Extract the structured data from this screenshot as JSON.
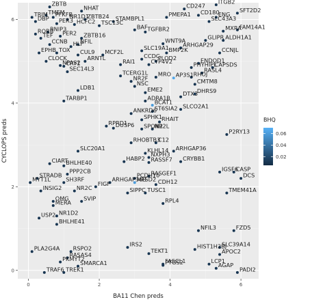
{
  "chart_data": {
    "type": "scatter",
    "xlabel": "BA11 Chen preds",
    "ylabel": "CYCLOPS preds",
    "xlim": [
      -0.3,
      6.5
    ],
    "ylim": [
      -0.2,
      6.4
    ],
    "x_ticks": [
      0,
      2,
      4,
      6
    ],
    "y_ticks": [
      0,
      2,
      4,
      6
    ],
    "grid": true,
    "background": "#ebebeb",
    "point_color_low": "#132b43",
    "point_color_high": "#56b1f7",
    "legend": {
      "title": "BHQ",
      "position": "right",
      "ticks": [
        0.02,
        0.04,
        0.06
      ],
      "range": [
        0.005,
        0.07
      ]
    },
    "points": [
      {
        "label": "ZBTB",
        "x": 0.6,
        "y": 6.3,
        "bhq": 0.01
      },
      {
        "label": "NHAT",
        "x": 1.5,
        "y": 6.2,
        "bhq": 0.01
      },
      {
        "label": "TMEM",
        "x": 0.5,
        "y": 6.1,
        "bhq": 0.01
      },
      {
        "label": "TRIM",
        "x": 0.1,
        "y": 6.05,
        "bhq": 0.01
      },
      {
        "label": "PFKFB",
        "x": 0.7,
        "y": 6.05,
        "bhq": 0.01
      },
      {
        "label": "NR1D1",
        "x": 1.1,
        "y": 6.0,
        "bhq": 0.01
      },
      {
        "label": "ZBTB24",
        "x": 1.6,
        "y": 6.0,
        "bhq": 0.01
      },
      {
        "label": "DBP",
        "x": 0.2,
        "y": 5.95,
        "bhq": 0.01
      },
      {
        "label": "PER3",
        "x": 0.8,
        "y": 5.9,
        "bhq": 0.01
      },
      {
        "label": "HCFC2",
        "x": 1.3,
        "y": 5.88,
        "bhq": 0.01
      },
      {
        "label": "TSC13C",
        "x": 2.0,
        "y": 5.85,
        "bhq": 0.01
      },
      {
        "label": "STAMBPL1",
        "x": 2.4,
        "y": 5.95,
        "bhq": 0.01
      },
      {
        "label": "BNIP3",
        "x": 0.55,
        "y": 5.7,
        "bhq": 0.01
      },
      {
        "label": "RORB",
        "x": 0.2,
        "y": 5.65,
        "bhq": 0.01
      },
      {
        "label": "TEF",
        "x": 0.35,
        "y": 5.55,
        "bhq": 0.01
      },
      {
        "label": "PER2",
        "x": 0.9,
        "y": 5.6,
        "bhq": 0.01
      },
      {
        "label": "ZBTB16",
        "x": 1.5,
        "y": 5.55,
        "bhq": 0.01
      },
      {
        "label": "BAF",
        "x": 3.0,
        "y": 5.75,
        "bhq": 0.01
      },
      {
        "label": "CCNB",
        "x": 0.6,
        "y": 5.4,
        "bhq": 0.01
      },
      {
        "label": "HLF",
        "x": 1.2,
        "y": 5.35,
        "bhq": 0.01
      },
      {
        "label": "NFIL",
        "x": 1.4,
        "y": 5.4,
        "bhq": 0.01
      },
      {
        "label": "EPHB",
        "x": 0.3,
        "y": 5.2,
        "bhq": 0.01
      },
      {
        "label": "TOX",
        "x": 0.8,
        "y": 5.2,
        "bhq": 0.01
      },
      {
        "label": "CUL9",
        "x": 1.4,
        "y": 5.15,
        "bhq": 0.01
      },
      {
        "label": "MCF2L",
        "x": 2.1,
        "y": 5.15,
        "bhq": 0.01
      },
      {
        "label": "CLOCK",
        "x": 0.5,
        "y": 5.0,
        "bhq": 0.01
      },
      {
        "label": "ARNTL",
        "x": 1.6,
        "y": 5.0,
        "bhq": 0.01
      },
      {
        "label": "NPAS2",
        "x": 0.9,
        "y": 4.9,
        "bhq": 0.01
      },
      {
        "label": "CRY1",
        "x": 1.0,
        "y": 4.88,
        "bhq": 0.01
      },
      {
        "label": "SEC14L3",
        "x": 1.1,
        "y": 4.75,
        "bhq": 0.01
      },
      {
        "label": "CD247",
        "x": 4.4,
        "y": 6.25,
        "bhq": 0.01
      },
      {
        "label": "ITGB2",
        "x": 5.3,
        "y": 6.35,
        "bhq": 0.01
      },
      {
        "label": "SFT2D2",
        "x": 5.9,
        "y": 6.15,
        "bhq": 0.01
      },
      {
        "label": "PMEPA1",
        "x": 3.9,
        "y": 6.05,
        "bhq": 0.01
      },
      {
        "label": "CD180",
        "x": 4.8,
        "y": 6.1,
        "bhq": 0.01
      },
      {
        "label": "ENG",
        "x": 5.3,
        "y": 6.05,
        "bhq": 0.01
      },
      {
        "label": "SLC43A3",
        "x": 5.1,
        "y": 5.95,
        "bhq": 0.01
      },
      {
        "label": "TGFBR2",
        "x": 3.3,
        "y": 5.7,
        "bhq": 0.01
      },
      {
        "label": "MXRA",
        "x": 5.5,
        "y": 5.72,
        "bhq": 0.01
      },
      {
        "label": "FAM14A1",
        "x": 5.9,
        "y": 5.75,
        "bhq": 0.01
      },
      {
        "label": "WNT9A",
        "x": 3.8,
        "y": 5.42,
        "bhq": 0.01
      },
      {
        "label": "ARHGAP29",
        "x": 4.3,
        "y": 5.32,
        "bhq": 0.01
      },
      {
        "label": "GLIPR",
        "x": 5.0,
        "y": 5.5,
        "bhq": 0.01
      },
      {
        "label": "ALDH1A1",
        "x": 5.5,
        "y": 5.5,
        "bhq": 0.01
      },
      {
        "label": "SLC19A1",
        "x": 3.2,
        "y": 5.25,
        "bhq": 0.01
      },
      {
        "label": "BMP2K",
        "x": 3.9,
        "y": 5.2,
        "bhq": 0.01
      },
      {
        "label": "CCNJL",
        "x": 5.4,
        "y": 5.2,
        "bhq": 0.01
      },
      {
        "label": "CCDC",
        "x": 3.2,
        "y": 5.05,
        "bhq": 0.01
      },
      {
        "label": "PLOD2",
        "x": 3.6,
        "y": 5.0,
        "bhq": 0.01
      },
      {
        "label": "ENDOD1",
        "x": 4.8,
        "y": 4.95,
        "bhq": 0.01
      },
      {
        "label": "PHYHIPL",
        "x": 4.6,
        "y": 4.85,
        "bhq": 0.01
      },
      {
        "label": "CAPSDS",
        "x": 5.2,
        "y": 4.85,
        "bhq": 0.01
      },
      {
        "label": "RAI1",
        "x": 2.6,
        "y": 4.92,
        "bhq": 0.01
      },
      {
        "label": "CYP4V2",
        "x": 3.4,
        "y": 4.92,
        "bhq": 0.01
      },
      {
        "label": "TCERG1L",
        "x": 2.6,
        "y": 4.65,
        "bhq": 0.01
      },
      {
        "label": "MRO",
        "x": 3.6,
        "y": 4.62,
        "bhq": 0.01
      },
      {
        "label": "AP3S1",
        "x": 4.1,
        "y": 4.6,
        "bhq": 0.065
      },
      {
        "label": "RASL4",
        "x": 4.9,
        "y": 4.72,
        "bhq": 0.01
      },
      {
        "label": "NR2F",
        "x": 2.9,
        "y": 4.52,
        "bhq": 0.01
      },
      {
        "label": "NSC",
        "x": 3.0,
        "y": 4.4,
        "bhq": 0.01
      },
      {
        "label": "CMTM8",
        "x": 4.7,
        "y": 4.45,
        "bhq": 0.01
      },
      {
        "label": "RHOJ",
        "x": 4.6,
        "y": 4.62,
        "bhq": 0.01
      },
      {
        "label": "LDB1",
        "x": 1.4,
        "y": 4.3,
        "bhq": 0.01
      },
      {
        "label": "TARBP1",
        "x": 1.0,
        "y": 4.05,
        "bhq": 0.01
      },
      {
        "label": "EME2",
        "x": 3.3,
        "y": 4.25,
        "bhq": 0.01
      },
      {
        "label": "DTX3",
        "x": 4.3,
        "y": 4.15,
        "bhq": 0.01
      },
      {
        "label": "DHRS9",
        "x": 4.7,
        "y": 4.22,
        "bhq": 0.01
      },
      {
        "label": "ADRA1B",
        "x": 3.3,
        "y": 4.05,
        "bhq": 0.01
      },
      {
        "label": "BCAT1",
        "x": 3.5,
        "y": 3.95,
        "bhq": 0.06
      },
      {
        "label": "ST6SIA2",
        "x": 3.5,
        "y": 3.8,
        "bhq": 0.01
      },
      {
        "label": "SLCO2A1",
        "x": 4.3,
        "y": 3.85,
        "bhq": 0.01
      },
      {
        "label": "ANKRD6",
        "x": 2.9,
        "y": 3.75,
        "bhq": 0.01
      },
      {
        "label": "SPHK1",
        "x": 3.2,
        "y": 3.6,
        "bhq": 0.01
      },
      {
        "label": "RHAIT",
        "x": 3.7,
        "y": 3.55,
        "bhq": 0.01
      },
      {
        "label": "RPRD1",
        "x": 2.2,
        "y": 3.45,
        "bhq": 0.01
      },
      {
        "label": "DUSP6",
        "x": 2.4,
        "y": 3.4,
        "bhq": 0.01
      },
      {
        "label": "SPON2",
        "x": 3.2,
        "y": 3.38,
        "bhq": 0.01
      },
      {
        "label": "NR2L",
        "x": 3.5,
        "y": 3.38,
        "bhq": 0.01
      },
      {
        "label": "P2RY13",
        "x": 5.6,
        "y": 3.25,
        "bhq": 0.01
      },
      {
        "label": "RHOBTB3",
        "x": 2.9,
        "y": 3.05,
        "bhq": 0.01
      },
      {
        "label": "C12",
        "x": 3.6,
        "y": 3.05,
        "bhq": 0.01
      },
      {
        "label": "SLC20A1",
        "x": 1.4,
        "y": 2.85,
        "bhq": 0.01
      },
      {
        "label": "KLHL14",
        "x": 3.3,
        "y": 2.8,
        "bhq": 0.01
      },
      {
        "label": "ARHGAP36",
        "x": 4.1,
        "y": 2.85,
        "bhq": 0.01
      },
      {
        "label": "NXPH3",
        "x": 3.4,
        "y": 2.7,
        "bhq": 0.01
      },
      {
        "label": "CIART",
        "x": 0.6,
        "y": 2.55,
        "bhq": 0.01
      },
      {
        "label": "BHLHE40",
        "x": 1.0,
        "y": 2.5,
        "bhq": 0.01
      },
      {
        "label": "HABP2",
        "x": 2.7,
        "y": 2.6,
        "bhq": 0.01
      },
      {
        "label": "RASSF7",
        "x": 3.4,
        "y": 2.58,
        "bhq": 0.01
      },
      {
        "label": "CRYBB1",
        "x": 4.3,
        "y": 2.6,
        "bhq": 0.01
      },
      {
        "label": "IGSF6",
        "x": 5.4,
        "y": 2.35,
        "bhq": 0.01
      },
      {
        "label": "CASP",
        "x": 5.8,
        "y": 2.35,
        "bhq": 0.01
      },
      {
        "label": "PPP2CB",
        "x": 1.1,
        "y": 2.3,
        "bhq": 0.01
      },
      {
        "label": "STRADB",
        "x": 0.25,
        "y": 2.2,
        "bhq": 0.01
      },
      {
        "label": "PCDH10",
        "x": 3.0,
        "y": 2.2,
        "bhq": 0.01
      },
      {
        "label": "RASGEF1",
        "x": 3.4,
        "y": 2.25,
        "bhq": 0.01
      },
      {
        "label": "DCS",
        "x": 6.0,
        "y": 2.2,
        "bhq": 0.01
      },
      {
        "label": "MYT1L",
        "x": 0.05,
        "y": 2.1,
        "bhq": 0.01
      },
      {
        "label": "SH3RF",
        "x": 1.0,
        "y": 2.1,
        "bhq": 0.01
      },
      {
        "label": "ARHGAP36B",
        "x": 2.3,
        "y": 2.1,
        "bhq": 0.01
      },
      {
        "label": "MFSD2",
        "x": 3.0,
        "y": 2.1,
        "bhq": 0.06
      },
      {
        "label": "CDH12",
        "x": 3.6,
        "y": 2.05,
        "bhq": 0.01
      },
      {
        "label": "FIGF",
        "x": 1.9,
        "y": 2.0,
        "bhq": 0.01
      },
      {
        "label": "INSIG2",
        "x": 0.35,
        "y": 1.9,
        "bhq": 0.01
      },
      {
        "label": "NR2C",
        "x": 1.3,
        "y": 1.9,
        "bhq": 0.01
      },
      {
        "label": "TMEM41A",
        "x": 5.6,
        "y": 1.85,
        "bhq": 0.01
      },
      {
        "label": "SIPPC",
        "x": 2.8,
        "y": 1.85,
        "bhq": 0.01
      },
      {
        "label": "TUSC1",
        "x": 3.3,
        "y": 1.85,
        "bhq": 0.01
      },
      {
        "label": "OMG",
        "x": 0.7,
        "y": 1.65,
        "bhq": 0.01
      },
      {
        "label": "SVIP",
        "x": 1.5,
        "y": 1.65,
        "bhq": 0.01
      },
      {
        "label": "RPL4",
        "x": 3.8,
        "y": 1.6,
        "bhq": 0.01
      },
      {
        "label": "MERA",
        "x": 0.7,
        "y": 1.55,
        "bhq": 0.01
      },
      {
        "label": "NR1D2",
        "x": 0.8,
        "y": 1.3,
        "bhq": 0.01
      },
      {
        "label": "USP2",
        "x": 0.3,
        "y": 1.25,
        "bhq": 0.01
      },
      {
        "label": "BHLHE41",
        "x": 0.8,
        "y": 1.1,
        "bhq": 0.01
      },
      {
        "label": "NFIL3",
        "x": 4.8,
        "y": 0.95,
        "bhq": 0.01
      },
      {
        "label": "FZD5",
        "x": 5.8,
        "y": 0.95,
        "bhq": 0.01
      },
      {
        "label": "PLA2G4A",
        "x": 0.1,
        "y": 0.45,
        "bhq": 0.01
      },
      {
        "label": "RSPO2",
        "x": 1.2,
        "y": 0.45,
        "bhq": 0.01
      },
      {
        "label": "IRS2",
        "x": 2.8,
        "y": 0.55,
        "bhq": 0.01
      },
      {
        "label": "TEKT1",
        "x": 3.4,
        "y": 0.4,
        "bhq": 0.01
      },
      {
        "label": "HIST1H2BJ",
        "x": 4.7,
        "y": 0.5,
        "bhq": 0.01
      },
      {
        "label": "SLC39A14",
        "x": 5.4,
        "y": 0.55,
        "bhq": 0.01
      },
      {
        "label": "RASAS4",
        "x": 1.1,
        "y": 0.3,
        "bhq": 0.01
      },
      {
        "label": "PKMYT2",
        "x": 0.9,
        "y": 0.2,
        "bhq": 0.01
      },
      {
        "label": "APOC2",
        "x": 5.4,
        "y": 0.38,
        "bhq": 0.01
      },
      {
        "label": "SMARCA1",
        "x": 1.4,
        "y": 0.1,
        "bhq": 0.01
      },
      {
        "label": "FASCL1",
        "x": 3.8,
        "y": 0.15,
        "bhq": 0.01
      },
      {
        "label": "PTGS2",
        "x": 3.8,
        "y": 0.12,
        "bhq": 0.01
      },
      {
        "label": "LCP1",
        "x": 5.1,
        "y": 0.15,
        "bhq": 0.01
      },
      {
        "label": "AGAP",
        "x": 5.3,
        "y": 0.05,
        "bhq": 0.01
      },
      {
        "label": "TRAF6",
        "x": 0.45,
        "y": -0.05,
        "bhq": 0.01
      },
      {
        "label": "TREK1",
        "x": 1.0,
        "y": -0.05,
        "bhq": 0.01
      },
      {
        "label": "PADI2",
        "x": 5.9,
        "y": -0.05,
        "bhq": 0.01
      }
    ]
  }
}
